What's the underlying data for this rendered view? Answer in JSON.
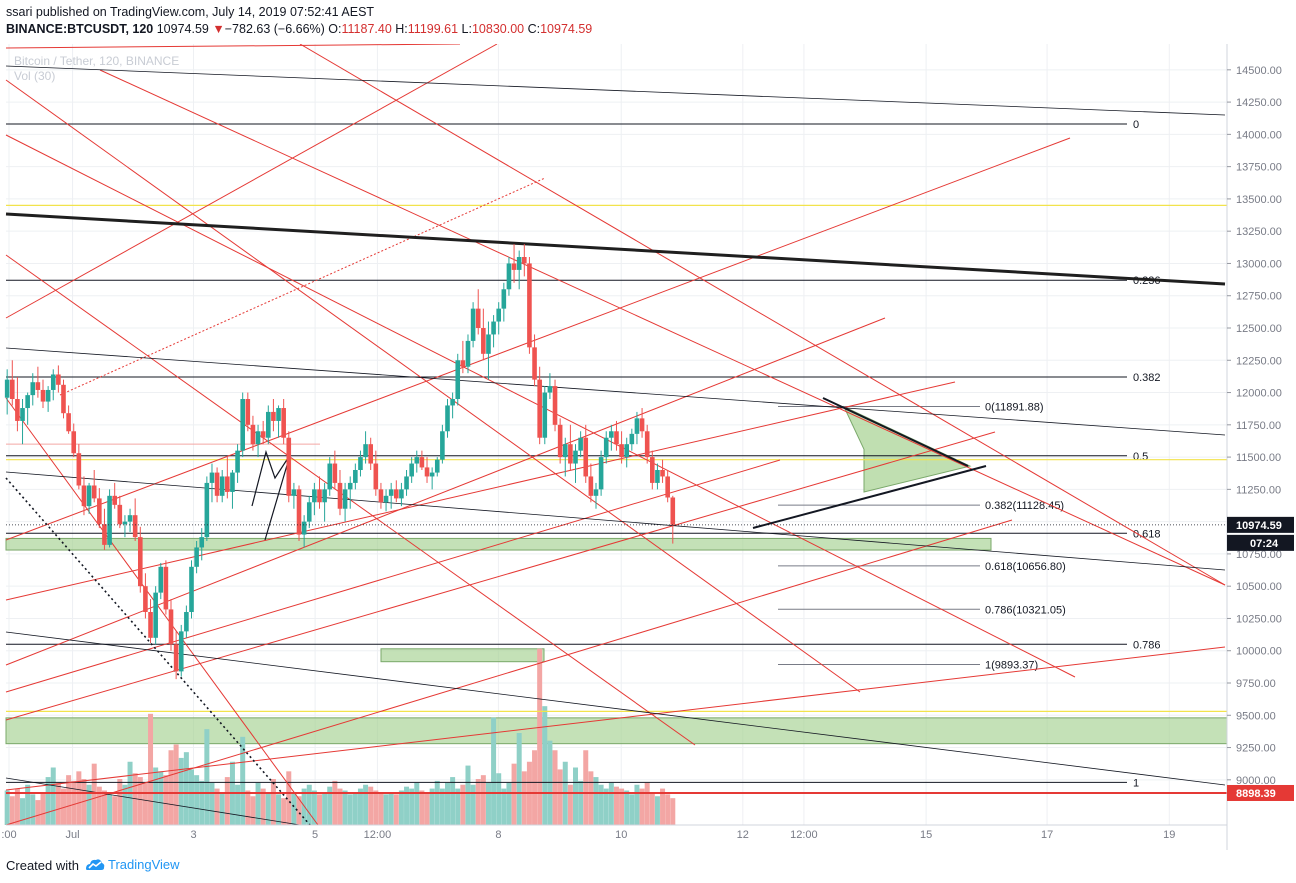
{
  "header": {
    "published": "ssari published on TradingView.com, July 14, 2019 07:52:41 AEST",
    "symbol": "BINANCE:BTCUSDT, 120",
    "last": "10974.59",
    "change_arrow": "▼",
    "change": "−782.63 (−6.66%)",
    "o_label": "O:",
    "o_value": "11187.40",
    "h_label": "H:",
    "h_value": "11199.61",
    "l_label": "L:",
    "l_value": "10830.00",
    "c_label": "C:",
    "c_value": "10974.59"
  },
  "legend_ghost": {
    "line1": "Bitcoin / Tether, 120, BINANCE",
    "line2": "Vol (30)"
  },
  "footer": {
    "created_with": "Created with",
    "brand": "TradingView"
  },
  "colors": {
    "up": "#26a69a",
    "down": "#ef5350",
    "vol_up": "#8fd0c7",
    "vol_down": "#f3a6a4",
    "trend_red": "#e53935",
    "zone_green": "#a5d190",
    "fib_yellow": "#f2e34c"
  },
  "chart_data": {
    "type": "candlestick",
    "title": "",
    "price_axis": {
      "ylim": [
        8650,
        14700
      ],
      "ticks": [
        9000,
        9250,
        9500,
        9750,
        10000,
        10250,
        10500,
        10750,
        11000,
        11250,
        11500,
        11750,
        12000,
        12250,
        12500,
        12750,
        13000,
        13250,
        13500,
        13750,
        14000,
        14250,
        14500
      ],
      "tick_labels": [
        "9000.00",
        "9250.00",
        "9500.00",
        "9750.00",
        "10000.00",
        "10250.00",
        "10500.00",
        "10750.00",
        "11000.00",
        "11250.00",
        "11500.00",
        "11750.00",
        "12000.00",
        "12250.00",
        "12500.00",
        "12750.00",
        "13000.00",
        "13250.00",
        "13500.00",
        "13750.00",
        "14000.00",
        "14250.00",
        "14500.00"
      ],
      "last_price_label": "10974.59",
      "countdown_label": "07:24",
      "alert_price_label": "8898.39"
    },
    "time_axis": {
      "labels": [
        ":00",
        "Jul",
        "3",
        "5",
        "12:00",
        "8",
        "10",
        "12",
        "12:00",
        "15",
        "17",
        "19"
      ],
      "label_day": [
        -0.3,
        0.74,
        2.72,
        4.71,
        5.73,
        7.71,
        9.72,
        11.71,
        12.71,
        14.71,
        16.69,
        18.69
      ]
    },
    "ohlc": [
      [
        11960,
        12180,
        11830,
        12100
      ],
      [
        12100,
        12250,
        11900,
        11950
      ],
      [
        11950,
        12120,
        11700,
        11780
      ],
      [
        11780,
        11950,
        11600,
        11880
      ],
      [
        11880,
        12000,
        11750,
        11980
      ],
      [
        11980,
        12150,
        11900,
        12080
      ],
      [
        12080,
        12200,
        11960,
        12020
      ],
      [
        12020,
        12100,
        11880,
        11930
      ],
      [
        11930,
        12050,
        11850,
        12020
      ],
      [
        12020,
        12180,
        11940,
        12140
      ],
      [
        12140,
        12210,
        12000,
        12060
      ],
      [
        12060,
        12100,
        11800,
        11840
      ],
      [
        11840,
        11900,
        11680,
        11700
      ],
      [
        11700,
        11760,
        11500,
        11530
      ],
      [
        11530,
        11600,
        11250,
        11280
      ],
      [
        11280,
        11350,
        11050,
        11120
      ],
      [
        11120,
        11300,
        11060,
        11280
      ],
      [
        11280,
        11400,
        11150,
        11180
      ],
      [
        11180,
        11260,
        10950,
        10980
      ],
      [
        10980,
        11100,
        10780,
        10820
      ],
      [
        10820,
        11250,
        10800,
        11200
      ],
      [
        11200,
        11300,
        11100,
        11130
      ],
      [
        11130,
        11200,
        10950,
        10980
      ],
      [
        10980,
        11050,
        10880,
        11000
      ],
      [
        11000,
        11100,
        10920,
        11050
      ],
      [
        11050,
        11180,
        10850,
        10880
      ],
      [
        10880,
        10960,
        10450,
        10500
      ],
      [
        10500,
        10600,
        10250,
        10300
      ],
      [
        10300,
        10400,
        10060,
        10100
      ],
      [
        10100,
        10500,
        10050,
        10450
      ],
      [
        10450,
        10680,
        10400,
        10650
      ],
      [
        10650,
        10700,
        10280,
        10320
      ],
      [
        10320,
        10400,
        10000,
        10050
      ],
      [
        10050,
        10150,
        9780,
        9840
      ],
      [
        9840,
        10200,
        9800,
        10150
      ],
      [
        10150,
        10350,
        10100,
        10300
      ],
      [
        10300,
        10700,
        10250,
        10650
      ],
      [
        10650,
        10850,
        10600,
        10800
      ],
      [
        10800,
        10950,
        10700,
        10880
      ],
      [
        10880,
        11350,
        10850,
        11300
      ],
      [
        11300,
        11450,
        11150,
        11380
      ],
      [
        11380,
        11420,
        11150,
        11200
      ],
      [
        11200,
        11400,
        11150,
        11350
      ],
      [
        11350,
        11500,
        11180,
        11230
      ],
      [
        11230,
        11400,
        11100,
        11380
      ],
      [
        11380,
        11600,
        11300,
        11550
      ],
      [
        11550,
        12000,
        11500,
        11950
      ],
      [
        11950,
        12000,
        11700,
        11750
      ],
      [
        11750,
        11820,
        11550,
        11600
      ],
      [
        11600,
        11750,
        11500,
        11700
      ],
      [
        11700,
        11780,
        11600,
        11650
      ],
      [
        11650,
        11900,
        11600,
        11850
      ],
      [
        11850,
        11950,
        11700,
        11780
      ],
      [
        11780,
        11900,
        11650,
        11880
      ],
      [
        11880,
        11950,
        11600,
        11650
      ],
      [
        11650,
        11700,
        11150,
        11200
      ],
      [
        11200,
        11300,
        11100,
        11250
      ],
      [
        11250,
        11280,
        10850,
        10900
      ],
      [
        10900,
        11050,
        10800,
        11000
      ],
      [
        11000,
        11200,
        10950,
        11150
      ],
      [
        11150,
        11300,
        11050,
        11250
      ],
      [
        11250,
        11350,
        11100,
        11150
      ],
      [
        11150,
        11300,
        11000,
        11250
      ],
      [
        11250,
        11500,
        11200,
        11450
      ],
      [
        11450,
        11550,
        11250,
        11300
      ],
      [
        11300,
        11400,
        11050,
        11100
      ],
      [
        11100,
        11300,
        11000,
        11250
      ],
      [
        11250,
        11350,
        11100,
        11300
      ],
      [
        11300,
        11450,
        11250,
        11400
      ],
      [
        11400,
        11550,
        11350,
        11500
      ],
      [
        11500,
        11700,
        11450,
        11600
      ],
      [
        11600,
        11650,
        11400,
        11450
      ],
      [
        11450,
        11550,
        11200,
        11250
      ],
      [
        11250,
        11300,
        11100,
        11150
      ],
      [
        11150,
        11250,
        11080,
        11200
      ],
      [
        11200,
        11300,
        11100,
        11250
      ],
      [
        11250,
        11320,
        11150,
        11180
      ],
      [
        11180,
        11300,
        11120,
        11250
      ],
      [
        11250,
        11400,
        11200,
        11350
      ],
      [
        11350,
        11500,
        11300,
        11450
      ],
      [
        11450,
        11550,
        11380,
        11500
      ],
      [
        11500,
        11550,
        11400,
        11420
      ],
      [
        11420,
        11500,
        11300,
        11350
      ],
      [
        11350,
        11420,
        11250,
        11380
      ],
      [
        11380,
        11500,
        11350,
        11480
      ],
      [
        11480,
        11750,
        11450,
        11700
      ],
      [
        11700,
        11950,
        11650,
        11900
      ],
      [
        11900,
        12000,
        11800,
        11950
      ],
      [
        11950,
        12300,
        11900,
        12250
      ],
      [
        12250,
        12400,
        12150,
        12200
      ],
      [
        12200,
        12450,
        12150,
        12400
      ],
      [
        12400,
        12700,
        12350,
        12650
      ],
      [
        12650,
        12800,
        12450,
        12500
      ],
      [
        12500,
        12650,
        12250,
        12300
      ],
      [
        12300,
        12550,
        12100,
        12450
      ],
      [
        12450,
        12600,
        12350,
        12550
      ],
      [
        12550,
        12700,
        12450,
        12650
      ],
      [
        12650,
        12850,
        12550,
        12800
      ],
      [
        12800,
        13050,
        12750,
        13000
      ],
      [
        13000,
        13150,
        12850,
        12950
      ],
      [
        12950,
        13100,
        12800,
        13050
      ],
      [
        13050,
        13150,
        12900,
        13000
      ],
      [
        13000,
        13050,
        12300,
        12350
      ],
      [
        12350,
        12450,
        12050,
        12100
      ],
      [
        12100,
        12200,
        11600,
        11650
      ],
      [
        11650,
        12050,
        11600,
        12000
      ],
      [
        12000,
        12150,
        11950,
        12050
      ],
      [
        12050,
        12100,
        11700,
        11750
      ],
      [
        11750,
        11800,
        11450,
        11500
      ],
      [
        11500,
        11650,
        11350,
        11600
      ],
      [
        11600,
        11750,
        11400,
        11450
      ],
      [
        11450,
        11600,
        11300,
        11550
      ],
      [
        11550,
        11700,
        11500,
        11650
      ],
      [
        11650,
        11750,
        11300,
        11350
      ],
      [
        11350,
        11450,
        11150,
        11200
      ],
      [
        11200,
        11300,
        11100,
        11250
      ],
      [
        11250,
        11550,
        11200,
        11500
      ],
      [
        11500,
        11700,
        11450,
        11650
      ],
      [
        11650,
        11750,
        11550,
        11700
      ],
      [
        11700,
        11780,
        11550,
        11600
      ],
      [
        11600,
        11700,
        11450,
        11500
      ],
      [
        11500,
        11650,
        11420,
        11600
      ],
      [
        11600,
        11720,
        11550,
        11680
      ],
      [
        11680,
        11850,
        11600,
        11800
      ],
      [
        11800,
        11880,
        11650,
        11700
      ],
      [
        11700,
        11750,
        11450,
        11500
      ],
      [
        11500,
        11550,
        11250,
        11300
      ],
      [
        11300,
        11450,
        11250,
        11400
      ],
      [
        11400,
        11480,
        11300,
        11350
      ],
      [
        11350,
        11400,
        11150,
        11187
      ],
      [
        11187,
        11200,
        10830,
        10975
      ]
    ],
    "volume": {
      "ylim": [
        0,
        12000
      ],
      "values": [
        1800,
        1500,
        1900,
        1400,
        2100,
        1600,
        1300,
        1700,
        2500,
        3000,
        2200,
        1900,
        2600,
        2300,
        2800,
        2400,
        2100,
        3200,
        2000,
        1800,
        1600,
        1500,
        2400,
        2100,
        3300,
        2700,
        2500,
        2200,
        5800,
        3000,
        2800,
        2600,
        3900,
        4200,
        3500,
        3800,
        2900,
        2600,
        2300,
        5000,
        2200,
        1900,
        1700,
        2500,
        3300,
        2100,
        4600,
        1800,
        1500,
        2200,
        1900,
        1700,
        2400,
        1600,
        1400,
        2800,
        1700,
        1500,
        1900,
        2100,
        1800,
        1600,
        1700,
        2000,
        2300,
        1900,
        1800,
        1600,
        1700,
        1900,
        2100,
        2000,
        1800,
        1700,
        1600,
        1700,
        1600,
        1800,
        2000,
        1900,
        2200,
        1800,
        1700,
        1900,
        2300,
        1900,
        2200,
        2500,
        1900,
        2100,
        3100,
        2100,
        2400,
        2600,
        2200,
        5600,
        2700,
        1900,
        2200,
        3200,
        4800,
        2800,
        3300,
        3900,
        9200,
        6200,
        4400,
        3900,
        2900,
        3300,
        2100,
        3000,
        2300,
        3900,
        2800,
        2500,
        2100,
        1900,
        2200,
        2000,
        1900,
        1800,
        1600,
        2100,
        1900,
        2200,
        1700,
        1500,
        1900,
        1600,
        1400
      ]
    },
    "levels": [
      {
        "label": "0",
        "value": 14080
      },
      {
        "label": "0.236",
        "value": 12870
      },
      {
        "label": "0.382",
        "value": 12120
      },
      {
        "label": "0.5",
        "value": 11510
      },
      {
        "label": "0.618",
        "value": 10910
      },
      {
        "label": "0.786",
        "value": 10050
      },
      {
        "label": "1",
        "value": 8980
      }
    ],
    "fib_ext": [
      {
        "label": "0(11891.88)",
        "value": 11892
      },
      {
        "label": "0.382(11128.45)",
        "value": 11128
      },
      {
        "label": "0.618(10656.80)",
        "value": 10657
      },
      {
        "label": "0.786(10321.05)",
        "value": 10321
      },
      {
        "label": "1(9893.37)",
        "value": 9893
      }
    ],
    "yellow_levels": [
      13450,
      11480,
      9530
    ],
    "grid": true,
    "legend": "top-left"
  }
}
